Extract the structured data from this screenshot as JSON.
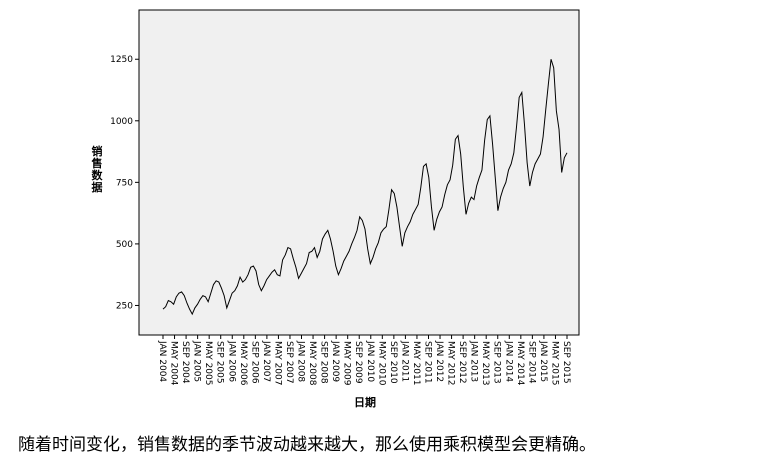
{
  "chart_data": {
    "type": "line",
    "title": "",
    "xlabel": "日期",
    "ylabel": "销售数据",
    "ylim": [
      130,
      1450
    ],
    "yticks": [
      250,
      500,
      750,
      1000,
      1250
    ],
    "ytick_labels": [
      "250",
      "500",
      "750",
      "1000",
      "1250"
    ],
    "xtick_labels": [
      "JAN 2004",
      "MAY 2004",
      "SEP 2004",
      "JAN 2005",
      "MAY 2005",
      "SEP 2005",
      "JAN 2006",
      "MAY 2006",
      "SEP 2006",
      "JAN 2007",
      "MAY 2007",
      "SEP 2007",
      "JAN 2008",
      "MAY 2008",
      "SEP 2008",
      "JAN 2009",
      "MAY 2009",
      "SEP 2009",
      "JAN 2010",
      "MAY 2010",
      "SEP 2010",
      "JAN 2011",
      "MAY 2011",
      "SEP 2011",
      "JAN 2012",
      "MAY 2012",
      "SEP 2012",
      "JAN 2013",
      "MAY 2013",
      "SEP 2013",
      "JAN 2014",
      "MAY 2014",
      "SEP 2014",
      "JAN 2015",
      "MAY 2015",
      "SEP 2015"
    ],
    "grid": false,
    "legend": "none",
    "line_color": "#000000",
    "plot_background": "#f0f0f0",
    "series": [
      {
        "values": [
          235,
          245,
          270,
          265,
          255,
          285,
          300,
          305,
          290,
          260,
          235,
          215,
          240,
          255,
          275,
          290,
          285,
          265,
          300,
          335,
          350,
          345,
          320,
          290,
          240,
          270,
          300,
          310,
          330,
          365,
          345,
          355,
          375,
          405,
          410,
          390,
          335,
          310,
          330,
          355,
          370,
          385,
          395,
          375,
          370,
          435,
          455,
          485,
          480,
          440,
          405,
          360,
          380,
          400,
          420,
          465,
          470,
          485,
          445,
          470,
          520,
          540,
          555,
          520,
          470,
          410,
          375,
          400,
          430,
          450,
          470,
          500,
          525,
          555,
          610,
          595,
          560,
          480,
          420,
          445,
          480,
          505,
          545,
          560,
          570,
          640,
          720,
          705,
          650,
          570,
          490,
          545,
          570,
          590,
          620,
          640,
          660,
          730,
          815,
          825,
          770,
          650,
          555,
          600,
          630,
          650,
          700,
          740,
          760,
          820,
          925,
          940,
          865,
          730,
          620,
          665,
          690,
          680,
          735,
          770,
          800,
          920,
          1005,
          1020,
          905,
          770,
          635,
          690,
          725,
          750,
          800,
          825,
          870,
          975,
          1095,
          1115,
          985,
          830,
          735,
          790,
          825,
          845,
          865,
          935,
          1045,
          1150,
          1250,
          1215,
          1040,
          965,
          790,
          850,
          870
        ]
      }
    ]
  },
  "caption": "随着时间变化，销售数据的季节波动越来越大，那么使用乘积模型会更精确。"
}
